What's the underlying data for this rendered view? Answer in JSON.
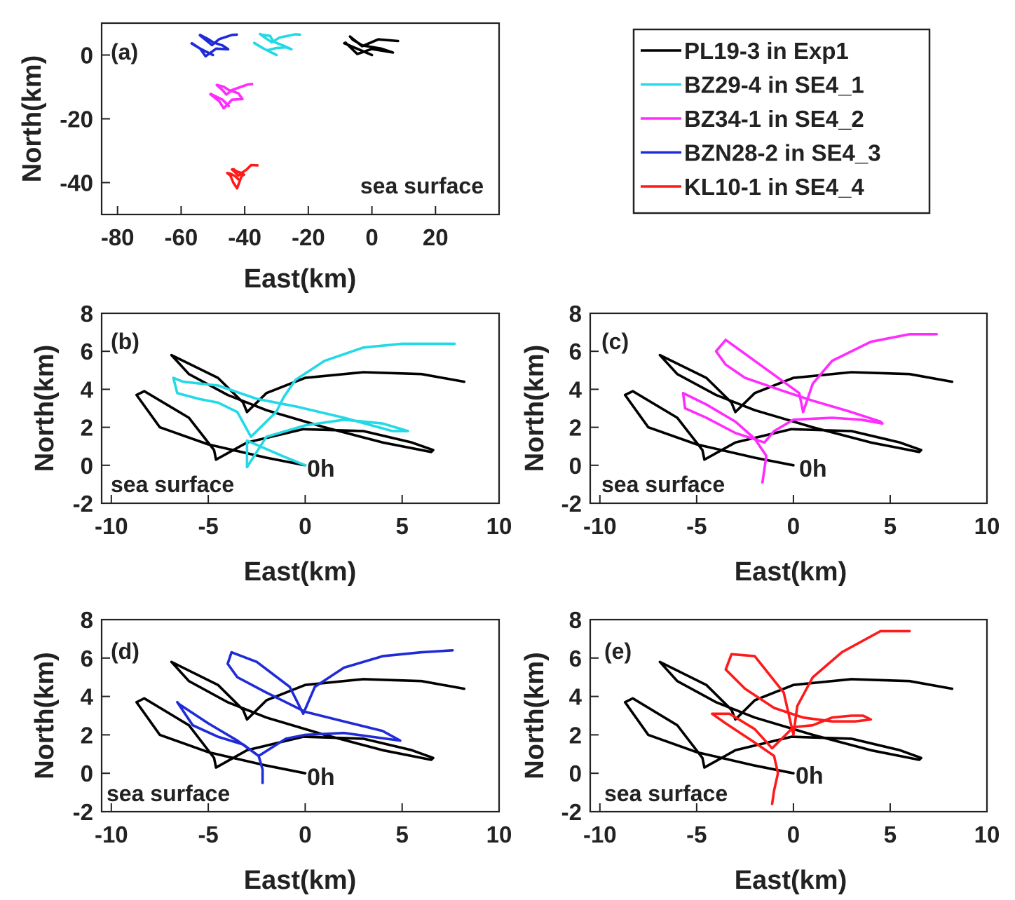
{
  "chart_data": [
    {
      "panel": "a",
      "type": "line",
      "label": "(a)",
      "annotation": "sea surface",
      "xlabel": "East(km)",
      "ylabel": "North(km)",
      "xlim": [
        -85,
        40
      ],
      "ylim": [
        -50,
        10
      ],
      "xticks": [
        -80,
        -60,
        -40,
        -20,
        0,
        20
      ],
      "yticks": [
        0,
        -20,
        -40
      ],
      "grid": false,
      "series": [
        {
          "name": "PL19-3 in Exp1",
          "color": "#000000",
          "x": [
            0,
            -8.7,
            -8.3,
            -4.6,
            -0.1,
            6.6,
            3,
            -3,
            -6,
            -6.9,
            -3.1,
            -3,
            2,
            8.2
          ],
          "y": [
            0,
            3.7,
            3.9,
            0.3,
            1.9,
            0.8,
            2,
            3,
            4.8,
            5.8,
            2.8,
            2.8,
            4.9,
            4.4
          ]
        },
        {
          "name": "BZ29-4 in SE4_1",
          "color": "#22d9e6",
          "x": [
            -30,
            -32,
            -34,
            -36.8,
            -37,
            -34,
            -33,
            -30,
            -27,
            -25.3,
            -28,
            -31,
            -32,
            -34.8,
            -35.2,
            -33,
            -31.5,
            -29,
            -24,
            -22.6
          ],
          "y": [
            0,
            1,
            2,
            3.6,
            3.8,
            2,
            1.5,
            2.2,
            2.4,
            1.8,
            3,
            4.2,
            6,
            6.4,
            6.6,
            5,
            4,
            5.5,
            6.5,
            6.4
          ]
        },
        {
          "name": "BZ34-1 in SE4_2",
          "color": "#ff2bff",
          "x": [
            -45,
            -47,
            -49,
            -50.7,
            -50.8,
            -48,
            -46.6,
            -44,
            -40.7,
            -42,
            -45,
            -46.5,
            -48.6,
            -48.8,
            -47,
            -45.8,
            -44,
            -39,
            -37.7
          ],
          "y": [
            -16,
            -14,
            -13,
            -12.2,
            -12.3,
            -14.5,
            -16.7,
            -14,
            -13.8,
            -12,
            -11,
            -10,
            -9.4,
            -9.4,
            -11,
            -12.4,
            -11,
            -9.2,
            -9.1
          ]
        },
        {
          "name": "BZN28-2 in SE4_3",
          "color": "#1f2bd6",
          "x": [
            -50,
            -52,
            -54,
            -56.7,
            -56.6,
            -54,
            -52.3,
            -49,
            -45.2,
            -47,
            -50,
            -51.5,
            -54,
            -54.1,
            -52,
            -50.3,
            -48,
            -44,
            -42.5
          ],
          "y": [
            0,
            1,
            2,
            3.6,
            3.7,
            2,
            -0.4,
            2,
            1.8,
            3,
            4,
            5,
            6.3,
            6.2,
            4.5,
            3.1,
            5,
            6.3,
            6.4
          ]
        },
        {
          "name": "KL10-1 in SE4_4",
          "color": "#ff1a1a",
          "x": [
            -42,
            -43,
            -44.5,
            -45.5,
            -44.5,
            -43.6,
            -42.4,
            -41,
            -40.2,
            -41,
            -42.5,
            -43.5,
            -44,
            -43,
            -42,
            -41,
            -39.5,
            -38,
            -36
          ],
          "y": [
            -39,
            -38,
            -37.2,
            -37,
            -37.8,
            -40,
            -41.8,
            -38,
            -37.5,
            -37,
            -36.5,
            -35.8,
            -35.9,
            -36.8,
            -37.8,
            -37,
            -36,
            -34.5,
            -34.6
          ]
        }
      ]
    },
    {
      "panel": "b",
      "type": "line",
      "label": "(b)",
      "annotation": "sea surface",
      "endpoint_label": "0h",
      "xlabel": "East(km)",
      "ylabel": "North(km)",
      "xlim": [
        -10.5,
        10
      ],
      "ylim": [
        -2,
        8
      ],
      "xticks": [
        -10,
        -5,
        0,
        5,
        10
      ],
      "yticks": [
        8,
        6,
        4,
        2,
        0,
        -2
      ],
      "grid": false,
      "series": [
        {
          "name": "PL19-3 in Exp1",
          "color": "#000000",
          "x": [
            0,
            -2,
            -5,
            -7.5,
            -8.7,
            -8.3,
            -6,
            -4.7,
            -4.6,
            -3,
            -0.1,
            3,
            5.5,
            6.6,
            6.5,
            4,
            1,
            -2,
            -4,
            -6,
            -6.9,
            -6.5,
            -4.5,
            -3.2,
            -3,
            -2,
            0,
            3,
            6,
            8.2
          ],
          "y": [
            0,
            0.4,
            1.1,
            2,
            3.7,
            3.9,
            2.5,
            0.8,
            0.3,
            1.2,
            1.9,
            1.8,
            1.2,
            0.8,
            0.7,
            1.2,
            2,
            2.9,
            3.7,
            4.8,
            5.8,
            5.6,
            4.6,
            3.3,
            2.8,
            3.8,
            4.6,
            4.9,
            4.8,
            4.4
          ]
        },
        {
          "name": "BZ29-4 in SE4_1",
          "color": "#22d9e6",
          "x": [
            0,
            -1.2,
            -3,
            -3,
            -2,
            0,
            2,
            4,
            5.3,
            4.5,
            2,
            -0.5,
            -2.5,
            -4.5,
            -6.3,
            -6.8,
            -6.6,
            -5.5,
            -4.5,
            -3.5,
            -2.8,
            -1.5,
            -1.1,
            -0.5,
            1,
            3,
            5,
            7.7
          ],
          "y": [
            0,
            0.5,
            1.3,
            -0.1,
            1.5,
            2.1,
            2.4,
            2.2,
            1.8,
            1.8,
            2.5,
            3.1,
            3.5,
            4.2,
            4.4,
            4.6,
            3.8,
            3.5,
            3.3,
            2.8,
            1.5,
            2.8,
            3.6,
            4.5,
            5.5,
            6.2,
            6.4,
            6.4
          ]
        }
      ]
    },
    {
      "panel": "c",
      "type": "line",
      "label": "(c)",
      "annotation": "sea surface",
      "endpoint_label": "0h",
      "xlabel": "East(km)",
      "ylabel": "North(km)",
      "xlim": [
        -10.5,
        10
      ],
      "ylim": [
        -2,
        8
      ],
      "xticks": [
        -10,
        -5,
        0,
        5,
        10
      ],
      "yticks": [
        8,
        6,
        4,
        2,
        0,
        -2
      ],
      "grid": false,
      "series": [
        {
          "name": "PL19-3 in Exp1",
          "color": "#000000",
          "x": [
            0,
            -2,
            -5,
            -7.5,
            -8.7,
            -8.3,
            -6,
            -4.7,
            -4.6,
            -3,
            -0.1,
            3,
            5.5,
            6.6,
            6.5,
            4,
            1,
            -2,
            -4,
            -6,
            -6.9,
            -6.5,
            -4.5,
            -3.2,
            -3,
            -2,
            0,
            3,
            6,
            8.2
          ],
          "y": [
            0,
            0.4,
            1.1,
            2,
            3.7,
            3.9,
            2.5,
            0.8,
            0.3,
            1.2,
            1.9,
            1.8,
            1.2,
            0.8,
            0.7,
            1.2,
            2,
            2.9,
            3.7,
            4.8,
            5.8,
            5.6,
            4.6,
            3.3,
            2.8,
            3.8,
            4.6,
            4.9,
            4.8,
            4.4
          ]
        },
        {
          "name": "BZ34-1 in SE4_2",
          "color": "#ff2bff",
          "x": [
            -1.6,
            -1.5,
            -1.4,
            -2,
            -3,
            -4.5,
            -5.7,
            -5.6,
            -4.5,
            -3,
            -1.5,
            -1,
            0,
            2,
            3.5,
            4.6,
            4.5,
            3,
            1,
            -0.5,
            -2.5,
            -3.5,
            -4,
            -3.5,
            -2,
            0.3,
            0.5,
            1,
            2,
            4,
            6,
            7.4
          ],
          "y": [
            -0.9,
            -0.2,
            0.5,
            1.4,
            2.3,
            3.2,
            3.8,
            3,
            2.5,
            1.7,
            1.2,
            1.8,
            2.4,
            2.5,
            2.4,
            2.2,
            2.3,
            2.8,
            3.4,
            3.9,
            4.6,
            5.3,
            6,
            6.6,
            5.5,
            3.8,
            2.8,
            4.3,
            5.5,
            6.5,
            6.9,
            6.9
          ]
        }
      ]
    },
    {
      "panel": "d",
      "type": "line",
      "label": "(d)",
      "annotation": "sea surface",
      "endpoint_label": "0h",
      "xlabel": "East(km)",
      "ylabel": "North(km)",
      "xlim": [
        -10.5,
        10
      ],
      "ylim": [
        -2,
        8
      ],
      "xticks": [
        -10,
        -5,
        0,
        5,
        10
      ],
      "yticks": [
        8,
        6,
        4,
        2,
        0,
        -2
      ],
      "grid": false,
      "series": [
        {
          "name": "PL19-3 in Exp1",
          "color": "#000000",
          "x": [
            0,
            -2,
            -5,
            -7.5,
            -8.7,
            -8.3,
            -6,
            -4.7,
            -4.6,
            -3,
            -0.1,
            3,
            5.5,
            6.6,
            6.5,
            4,
            1,
            -2,
            -4,
            -6,
            -6.9,
            -6.5,
            -4.5,
            -3.2,
            -3,
            -2,
            0,
            3,
            6,
            8.2
          ],
          "y": [
            0,
            0.4,
            1.1,
            2,
            3.7,
            3.9,
            2.5,
            0.8,
            0.3,
            1.2,
            1.9,
            1.8,
            1.2,
            0.8,
            0.7,
            1.2,
            2,
            2.9,
            3.7,
            4.8,
            5.8,
            5.6,
            4.6,
            3.3,
            2.8,
            3.8,
            4.6,
            4.9,
            4.8,
            4.4
          ]
        },
        {
          "name": "BZN28-2 in SE4_3",
          "color": "#1f2bd6",
          "x": [
            -2.2,
            -2.2,
            -2.4,
            -3.5,
            -5,
            -6.5,
            -6.6,
            -5.8,
            -4.5,
            -3.2,
            -2.4,
            -1,
            0,
            2,
            4.9,
            4,
            2,
            0,
            -2,
            -3.5,
            -4,
            -3.8,
            -2.5,
            -0.8,
            -0.1,
            0.5,
            2,
            4,
            6,
            7.6
          ],
          "y": [
            -0.5,
            0.2,
            0.9,
            1.7,
            2.6,
            3.6,
            3.7,
            2.5,
            1.9,
            1.5,
            0.9,
            1.8,
            2,
            2.1,
            1.7,
            2.2,
            2.7,
            3.2,
            4.2,
            5,
            5.7,
            6.3,
            5.8,
            4.5,
            3.1,
            4.5,
            5.5,
            6.1,
            6.3,
            6.4
          ]
        }
      ]
    },
    {
      "panel": "e",
      "type": "line",
      "label": "(e)",
      "annotation": "sea surface",
      "endpoint_label": "0h",
      "xlabel": "East(km)",
      "ylabel": "North(km)",
      "xlim": [
        -10.5,
        10
      ],
      "ylim": [
        -2,
        8
      ],
      "xticks": [
        -10,
        -5,
        0,
        5,
        10
      ],
      "yticks": [
        8,
        6,
        4,
        2,
        0,
        -2
      ],
      "grid": false,
      "series": [
        {
          "name": "PL19-3 in Exp1",
          "color": "#000000",
          "x": [
            0,
            -2,
            -5,
            -7.5,
            -8.7,
            -8.3,
            -6,
            -4.7,
            -4.6,
            -3,
            -0.1,
            3,
            5.5,
            6.6,
            6.5,
            4,
            1,
            -2,
            -4,
            -6,
            -6.9,
            -6.5,
            -4.5,
            -3.2,
            -3,
            -2,
            0,
            3,
            6,
            8.2
          ],
          "y": [
            0,
            0.4,
            1.1,
            2,
            3.7,
            3.9,
            2.5,
            0.8,
            0.3,
            1.2,
            1.9,
            1.8,
            1.2,
            0.8,
            0.7,
            1.2,
            2,
            2.9,
            3.7,
            4.8,
            5.8,
            5.6,
            4.6,
            3.3,
            2.8,
            3.8,
            4.6,
            4.9,
            4.8,
            4.4
          ]
        },
        {
          "name": "KL10-1 in SE4_4",
          "color": "#ff1a1a",
          "x": [
            -1.1,
            -1,
            -0.8,
            -1,
            -2,
            -3.5,
            -4.2,
            -3.3,
            -2,
            -1.1,
            -0.5,
            0,
            1,
            2,
            3,
            3.6,
            4,
            3.2,
            2,
            0.5,
            -1,
            -2.5,
            -3.5,
            -3.2,
            -2,
            -0.5,
            0,
            0.2,
            1,
            2.5,
            4.5,
            6
          ],
          "y": [
            -1.6,
            -0.9,
            0,
            0.9,
            1.6,
            2.6,
            3.1,
            3.1,
            2.3,
            1.3,
            1.9,
            2.4,
            2.5,
            2.9,
            3,
            3,
            2.8,
            2.7,
            2.7,
            2.9,
            3.4,
            4.4,
            5.4,
            6.2,
            6.1,
            4.2,
            2,
            3.5,
            5,
            6.3,
            7.4,
            7.4
          ]
        }
      ]
    }
  ],
  "legend": [
    {
      "label": "PL19-3 in Exp1",
      "color": "#000000"
    },
    {
      "label": "BZ29-4 in SE4_1",
      "color": "#22d9e6"
    },
    {
      "label": "BZ34-1 in SE4_2",
      "color": "#ff2bff"
    },
    {
      "label": "BZN28-2 in SE4_3",
      "color": "#1f2bd6"
    },
    {
      "label": "KL10-1 in SE4_4",
      "color": "#ff1a1a"
    }
  ]
}
